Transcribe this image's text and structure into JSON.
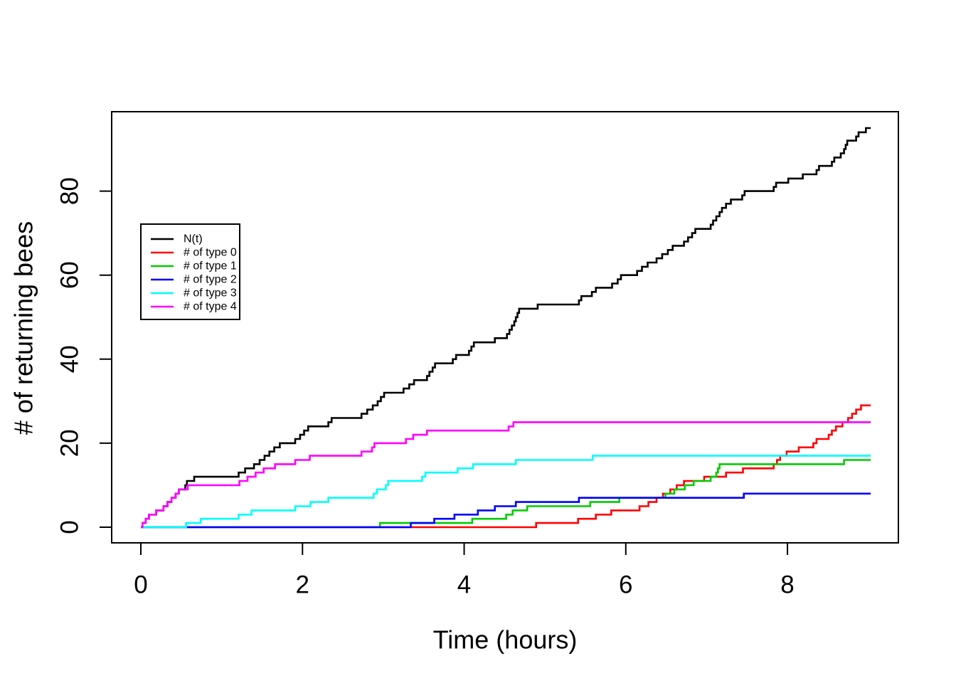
{
  "figure": {
    "background": "#ffffff"
  },
  "axes": {
    "x_title": "Time (hours)",
    "y_title": "# of returning bees",
    "x_tick_labels": [
      "0",
      "2",
      "4",
      "6",
      "8"
    ],
    "y_tick_labels": [
      "0",
      "20",
      "40",
      "60",
      "80"
    ]
  },
  "legend": {
    "entries": [
      {
        "label": "N(t)",
        "color": "#000000"
      },
      {
        "label": "# of type 0",
        "color": "#ff0000"
      },
      {
        "label": "# of type 1",
        "color": "#00cc00"
      },
      {
        "label": "# of type 2",
        "color": "#0000ff"
      },
      {
        "label": "# of type 3",
        "color": "#00ffff"
      },
      {
        "label": "# of type 4",
        "color": "#ff00ff"
      }
    ]
  },
  "chart_data": {
    "type": "line",
    "style": "step-post",
    "title": "",
    "xlabel": "Time (hours)",
    "ylabel": "# of returning bees",
    "x_ticks": [
      0,
      2,
      4,
      6,
      8
    ],
    "y_ticks": [
      0,
      20,
      40,
      60,
      80
    ],
    "xlim": [
      -0.36,
      9.38
    ],
    "ylim": [
      -3.7,
      99
    ],
    "grid": false,
    "legend_position": "inset-upper-left",
    "t_start": 0,
    "t_end": 9.03,
    "series": [
      {
        "name": "N(t)",
        "color": "#000000",
        "start_value": 0,
        "final_value": 95,
        "jump_times": [
          0.02,
          0.06,
          0.1,
          0.19,
          0.28,
          0.33,
          0.38,
          0.43,
          0.47,
          0.55,
          0.57,
          0.66,
          1.21,
          1.29,
          1.4,
          1.47,
          1.53,
          1.59,
          1.65,
          1.72,
          1.91,
          1.97,
          2.02,
          2.07,
          2.32,
          2.36,
          2.73,
          2.8,
          2.87,
          2.93,
          2.97,
          3.01,
          3.25,
          3.32,
          3.38,
          3.54,
          3.57,
          3.61,
          3.64,
          3.86,
          3.9,
          4.06,
          4.09,
          4.12,
          4.38,
          4.53,
          4.56,
          4.59,
          4.62,
          4.64,
          4.66,
          4.68,
          4.91,
          5.42,
          5.45,
          5.58,
          5.63,
          5.83,
          5.9,
          5.94,
          6.14,
          6.2,
          6.27,
          6.38,
          6.45,
          6.52,
          6.58,
          6.72,
          6.77,
          6.82,
          6.86,
          7.05,
          7.08,
          7.12,
          7.16,
          7.19,
          7.24,
          7.3,
          7.44,
          7.47,
          7.83,
          7.86,
          8.01,
          8.19,
          8.36,
          8.39,
          8.55,
          8.58,
          8.66,
          8.7,
          8.72,
          8.74,
          8.85,
          8.88,
          8.97
        ]
      },
      {
        "name": "# of type 0",
        "color": "#ff0000",
        "start_value": 0,
        "final_value": 29,
        "jump_times": [
          4.89,
          5.41,
          5.63,
          5.82,
          6.17,
          6.28,
          6.38,
          6.46,
          6.55,
          6.63,
          6.72,
          6.97,
          7.24,
          7.45,
          7.83,
          7.87,
          7.91,
          7.99,
          8.14,
          8.32,
          8.36,
          8.51,
          8.55,
          8.6,
          8.68,
          8.75,
          8.8,
          8.85,
          8.91
        ]
      },
      {
        "name": "# of type 1",
        "color": "#00cc00",
        "start_value": 0,
        "final_value": 16,
        "jump_times": [
          2.96,
          4.1,
          4.52,
          4.6,
          4.78,
          5.56,
          5.92,
          6.49,
          6.6,
          6.73,
          6.84,
          7.05,
          7.12,
          7.14,
          7.16,
          8.7
        ]
      },
      {
        "name": "# of type 2",
        "color": "#0000ff",
        "start_value": 0,
        "final_value": 8,
        "jump_times": [
          3.34,
          3.63,
          3.88,
          4.17,
          4.38,
          4.64,
          5.42,
          7.46
        ]
      },
      {
        "name": "# of type 3",
        "color": "#00ffff",
        "start_value": 0,
        "final_value": 17,
        "jump_times": [
          0.56,
          0.74,
          1.21,
          1.37,
          1.91,
          2.1,
          2.32,
          2.88,
          2.92,
          3.03,
          3.06,
          3.48,
          3.52,
          3.92,
          4.11,
          4.64,
          5.59
        ]
      },
      {
        "name": "# of type 4",
        "color": "#ff00ff",
        "start_value": 0,
        "final_value": 25,
        "jump_times": [
          0.02,
          0.06,
          0.1,
          0.19,
          0.28,
          0.33,
          0.38,
          0.43,
          0.47,
          0.58,
          1.22,
          1.32,
          1.42,
          1.52,
          1.66,
          1.91,
          2.09,
          2.73,
          2.86,
          2.89,
          3.28,
          3.37,
          3.54,
          4.55,
          4.61
        ]
      }
    ]
  }
}
